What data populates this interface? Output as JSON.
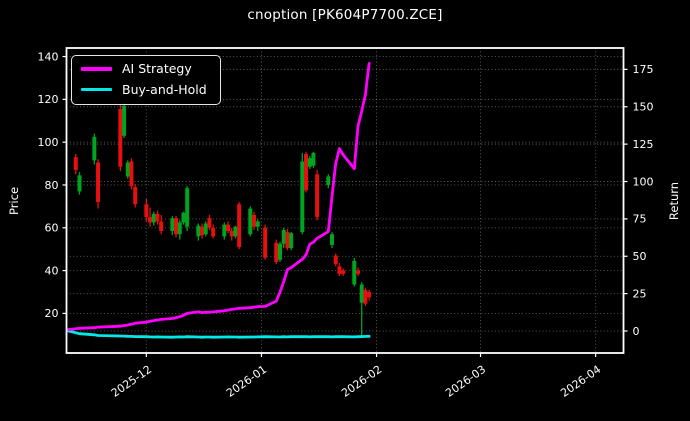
{
  "title": "cnoption [PK604P7700.ZCE]",
  "legend": {
    "items": [
      {
        "label": "AI Strategy",
        "color": "#ff00ff"
      },
      {
        "label": "Buy-and-Hold",
        "color": "#00e8e8"
      }
    ]
  },
  "axes": {
    "left_label": "Price",
    "right_label": "Return",
    "price_ticks": [
      20,
      40,
      60,
      80,
      100,
      120,
      140
    ],
    "return_ticks": [
      0,
      25,
      50,
      75,
      100,
      125,
      150,
      175
    ],
    "x_ticks": [
      {
        "date": "2025-12-01",
        "label": "2025-12"
      },
      {
        "date": "2026-01-01",
        "label": "2026-01"
      },
      {
        "date": "2026-02-01",
        "label": "2026-02"
      },
      {
        "date": "2026-03-01",
        "label": "2026-03"
      },
      {
        "date": "2026-04-01",
        "label": "2026-04"
      }
    ]
  },
  "chart_data": {
    "type": "candlestick+line",
    "title": "cnoption [PK604P7700.ZCE]",
    "xlabel": "",
    "ylabel_left": "Price",
    "ylabel_right": "Return",
    "grid": true,
    "legend_position": "upper-left",
    "background": "#000000",
    "price_axis": {
      "min": 1.5,
      "max": 144
    },
    "return_axis": {
      "min": -14.7,
      "max": 189.3
    },
    "x_range": {
      "start": "2025-11-10",
      "end": "2026-04-08"
    },
    "colors": {
      "up": "#00a41e",
      "down": "#e51010",
      "strategy": "#ff00ff",
      "buyhold": "#00e8e8",
      "grid": "rgba(255,255,255,0.38)",
      "spine": "#ffffff",
      "text": "#ffffff"
    },
    "candles": [
      {
        "d": "2025-11-12",
        "o": 93,
        "h": 94.5,
        "l": 85,
        "c": 87
      },
      {
        "d": "2025-11-13",
        "o": 77,
        "h": 86,
        "l": 75.5,
        "c": 84.5
      },
      {
        "d": "2025-11-17",
        "o": 91.5,
        "h": 104,
        "l": 89.5,
        "c": 102.5
      },
      {
        "d": "2025-11-18",
        "o": 90.5,
        "h": 92,
        "l": 69,
        "c": 72
      },
      {
        "d": "2025-11-24",
        "o": 115.5,
        "h": 117.5,
        "l": 86.5,
        "c": 88.5
      },
      {
        "d": "2025-11-25",
        "o": 103,
        "h": 118.5,
        "l": 102,
        "c": 117
      },
      {
        "d": "2025-11-26",
        "o": 84,
        "h": 91.5,
        "l": 83,
        "c": 90.5
      },
      {
        "d": "2025-11-27",
        "o": 91,
        "h": 92.5,
        "l": 78,
        "c": 79.5
      },
      {
        "d": "2025-11-28",
        "o": 79,
        "h": 80.5,
        "l": 69.5,
        "c": 71
      },
      {
        "d": "2025-12-01",
        "o": 71,
        "h": 73.5,
        "l": 63,
        "c": 65
      },
      {
        "d": "2025-12-02",
        "o": 65,
        "h": 69.5,
        "l": 60.5,
        "c": 62.5
      },
      {
        "d": "2025-12-03",
        "o": 62.5,
        "h": 67.5,
        "l": 61,
        "c": 66.5
      },
      {
        "d": "2025-12-04",
        "o": 66.5,
        "h": 68,
        "l": 61.5,
        "c": 63
      },
      {
        "d": "2025-12-05",
        "o": 63,
        "h": 66,
        "l": 57,
        "c": 58.5
      },
      {
        "d": "2025-12-08",
        "o": 58.5,
        "h": 65.5,
        "l": 56.5,
        "c": 64.5
      },
      {
        "d": "2025-12-09",
        "o": 64.5,
        "h": 65.5,
        "l": 55.5,
        "c": 57
      },
      {
        "d": "2025-12-10",
        "o": 57,
        "h": 63.5,
        "l": 54.5,
        "c": 62.5
      },
      {
        "d": "2025-12-11",
        "o": 62.5,
        "h": 67.5,
        "l": 61.5,
        "c": 67
      },
      {
        "d": "2025-12-12",
        "o": 60.5,
        "h": 79.5,
        "l": 58.5,
        "c": 78.5
      },
      {
        "d": "2025-12-15",
        "o": 56,
        "h": 62,
        "l": 54,
        "c": 61
      },
      {
        "d": "2025-12-16",
        "o": 60.5,
        "h": 62,
        "l": 55,
        "c": 56.5
      },
      {
        "d": "2025-12-17",
        "o": 57,
        "h": 63,
        "l": 56,
        "c": 62
      },
      {
        "d": "2025-12-18",
        "o": 64.5,
        "h": 66,
        "l": 59,
        "c": 60
      },
      {
        "d": "2025-12-19",
        "o": 60,
        "h": 61.5,
        "l": 55,
        "c": 56
      },
      {
        "d": "2025-12-22",
        "o": 56,
        "h": 62.5,
        "l": 54.5,
        "c": 61.5
      },
      {
        "d": "2025-12-23",
        "o": 61.5,
        "h": 63,
        "l": 57.5,
        "c": 58.5
      },
      {
        "d": "2025-12-24",
        "o": 58.5,
        "h": 60,
        "l": 54,
        "c": 56
      },
      {
        "d": "2025-12-25",
        "o": 56,
        "h": 61,
        "l": 55,
        "c": 60.5
      },
      {
        "d": "2025-12-26",
        "o": 71,
        "h": 72,
        "l": 50,
        "c": 51
      },
      {
        "d": "2025-12-29",
        "o": 57,
        "h": 70,
        "l": 56,
        "c": 69
      },
      {
        "d": "2025-12-30",
        "o": 66,
        "h": 67.5,
        "l": 59,
        "c": 60.5
      },
      {
        "d": "2025-12-31",
        "o": 60.5,
        "h": 64,
        "l": 58.5,
        "c": 63
      },
      {
        "d": "2026-01-02",
        "o": 60,
        "h": 61.5,
        "l": 45,
        "c": 46
      },
      {
        "d": "2026-01-05",
        "o": 53,
        "h": 54.5,
        "l": 43,
        "c": 44
      },
      {
        "d": "2026-01-06",
        "o": 45,
        "h": 53.5,
        "l": 44,
        "c": 52.5
      },
      {
        "d": "2026-01-07",
        "o": 52.5,
        "h": 60,
        "l": 50.5,
        "c": 59
      },
      {
        "d": "2026-01-08",
        "o": 58,
        "h": 59.5,
        "l": 49.5,
        "c": 50.5
      },
      {
        "d": "2026-01-09",
        "o": 50.5,
        "h": 58,
        "l": 49.5,
        "c": 57.5
      },
      {
        "d": "2026-01-12",
        "o": 58,
        "h": 95,
        "l": 57,
        "c": 91
      },
      {
        "d": "2026-01-13",
        "o": 94.5,
        "h": 95.5,
        "l": 76.5,
        "c": 77.5
      },
      {
        "d": "2026-01-14",
        "o": 88.5,
        "h": 93.5,
        "l": 87.5,
        "c": 92.5
      },
      {
        "d": "2026-01-15",
        "o": 89,
        "h": 95.5,
        "l": 88,
        "c": 95
      },
      {
        "d": "2026-01-16",
        "o": 85,
        "h": 87,
        "l": 63.5,
        "c": 65
      },
      {
        "d": "2026-01-19",
        "o": 80,
        "h": 85,
        "l": 78.5,
        "c": 84
      },
      {
        "d": "2026-01-20",
        "o": 52,
        "h": 58,
        "l": 50.5,
        "c": 57
      },
      {
        "d": "2026-01-21",
        "o": 47,
        "h": 48,
        "l": 42,
        "c": 43
      },
      {
        "d": "2026-01-22",
        "o": 42,
        "h": 43.5,
        "l": 37.5,
        "c": 38.5
      },
      {
        "d": "2026-01-23",
        "o": 40,
        "h": 41,
        "l": 37.5,
        "c": 38.5
      },
      {
        "d": "2026-01-26",
        "o": 33.5,
        "h": 46,
        "l": 32.5,
        "c": 44.5
      },
      {
        "d": "2026-01-27",
        "o": 40,
        "h": 41.5,
        "l": 37.5,
        "c": 38.5
      },
      {
        "d": "2026-01-28",
        "o": 25,
        "h": 34.5,
        "l": 9.5,
        "c": 33.5
      },
      {
        "d": "2026-01-29",
        "o": 31,
        "h": 32,
        "l": 23.5,
        "c": 24.5
      },
      {
        "d": "2026-01-30",
        "o": 30,
        "h": 31,
        "l": 26,
        "c": 27.5
      }
    ],
    "series": [
      {
        "name": "Buy-and-Hold",
        "axis": "return",
        "color": "#00e8e8",
        "width": 2.8,
        "points": [
          [
            "2025-11-10",
            0
          ],
          [
            "2025-11-11",
            -0.5
          ],
          [
            "2025-11-12",
            -1.2
          ],
          [
            "2025-11-13",
            -1.8
          ],
          [
            "2025-11-17",
            -2.5
          ],
          [
            "2025-11-18",
            -3.0
          ],
          [
            "2025-11-24",
            -3.3
          ],
          [
            "2025-11-25",
            -3.4
          ],
          [
            "2025-11-26",
            -3.5
          ],
          [
            "2025-11-27",
            -3.6
          ],
          [
            "2025-11-28",
            -3.7
          ],
          [
            "2025-12-01",
            -3.8
          ],
          [
            "2025-12-02",
            -3.9
          ],
          [
            "2025-12-03",
            -4.0
          ],
          [
            "2025-12-04",
            -3.9
          ],
          [
            "2025-12-05",
            -4.0
          ],
          [
            "2025-12-08",
            -4.1
          ],
          [
            "2025-12-09",
            -4.0
          ],
          [
            "2025-12-10",
            -3.9
          ],
          [
            "2025-12-11",
            -4.0
          ],
          [
            "2025-12-12",
            -3.8
          ],
          [
            "2025-12-15",
            -4.0
          ],
          [
            "2025-12-16",
            -4.1
          ],
          [
            "2025-12-17",
            -4.0
          ],
          [
            "2025-12-18",
            -4.0
          ],
          [
            "2025-12-19",
            -4.1
          ],
          [
            "2025-12-22",
            -4.0
          ],
          [
            "2025-12-23",
            -3.9
          ],
          [
            "2025-12-24",
            -4.0
          ],
          [
            "2025-12-25",
            -4.0
          ],
          [
            "2025-12-26",
            -4.1
          ],
          [
            "2025-12-29",
            -4.0
          ],
          [
            "2025-12-30",
            -4.0
          ],
          [
            "2025-12-31",
            -3.9
          ],
          [
            "2026-01-02",
            -3.8
          ],
          [
            "2026-01-05",
            -3.9
          ],
          [
            "2026-01-06",
            -4.0
          ],
          [
            "2026-01-07",
            -3.8
          ],
          [
            "2026-01-08",
            -3.9
          ],
          [
            "2026-01-09",
            -3.8
          ],
          [
            "2026-01-12",
            -3.7
          ],
          [
            "2026-01-13",
            -3.8
          ],
          [
            "2026-01-14",
            -3.9
          ],
          [
            "2026-01-15",
            -3.8
          ],
          [
            "2026-01-16",
            -3.7
          ],
          [
            "2026-01-19",
            -3.8
          ],
          [
            "2026-01-20",
            -3.9
          ],
          [
            "2026-01-21",
            -3.8
          ],
          [
            "2026-01-22",
            -3.7
          ],
          [
            "2026-01-23",
            -3.8
          ],
          [
            "2026-01-26",
            -3.9
          ],
          [
            "2026-01-27",
            -3.8
          ],
          [
            "2026-01-28",
            -3.7
          ],
          [
            "2026-01-29",
            -3.6
          ],
          [
            "2026-01-30",
            -3.5
          ]
        ]
      },
      {
        "name": "AI Strategy",
        "axis": "return",
        "color": "#ff00ff",
        "width": 2.8,
        "points": [
          [
            "2025-11-10",
            1.0
          ],
          [
            "2025-11-11",
            1.2
          ],
          [
            "2025-11-12",
            1.5
          ],
          [
            "2025-11-13",
            1.8
          ],
          [
            "2025-11-17",
            2.2
          ],
          [
            "2025-11-18",
            2.6
          ],
          [
            "2025-11-24",
            3.2
          ],
          [
            "2025-11-25",
            3.6
          ],
          [
            "2025-11-26",
            4.0
          ],
          [
            "2025-11-27",
            4.5
          ],
          [
            "2025-11-28",
            5.2
          ],
          [
            "2025-12-01",
            6.0
          ],
          [
            "2025-12-02",
            6.5
          ],
          [
            "2025-12-03",
            7.0
          ],
          [
            "2025-12-04",
            7.4
          ],
          [
            "2025-12-05",
            7.8
          ],
          [
            "2025-12-08",
            8.4
          ],
          [
            "2025-12-09",
            9.0
          ],
          [
            "2025-12-10",
            9.6
          ],
          [
            "2025-12-11",
            10.5
          ],
          [
            "2025-12-12",
            11.8
          ],
          [
            "2025-12-15",
            12.9
          ],
          [
            "2025-12-16",
            12.3
          ],
          [
            "2025-12-17",
            12.5
          ],
          [
            "2025-12-18",
            12.6
          ],
          [
            "2025-12-19",
            12.8
          ],
          [
            "2025-12-22",
            13.5
          ],
          [
            "2025-12-23",
            14.0
          ],
          [
            "2025-12-24",
            14.5
          ],
          [
            "2025-12-25",
            14.8
          ],
          [
            "2025-12-26",
            15.2
          ],
          [
            "2025-12-29",
            15.6
          ],
          [
            "2025-12-30",
            16.0
          ],
          [
            "2025-12-31",
            16.3
          ],
          [
            "2026-01-02",
            16.5
          ],
          [
            "2026-01-05",
            20
          ],
          [
            "2026-01-06",
            26
          ],
          [
            "2026-01-07",
            33
          ],
          [
            "2026-01-08",
            41
          ],
          [
            "2026-01-09",
            42.5
          ],
          [
            "2026-01-12",
            48
          ],
          [
            "2026-01-13",
            51
          ],
          [
            "2026-01-14",
            58
          ],
          [
            "2026-01-15",
            59.5
          ],
          [
            "2026-01-16",
            62
          ],
          [
            "2026-01-19",
            66.5
          ],
          [
            "2026-01-20",
            90
          ],
          [
            "2026-01-21",
            112
          ],
          [
            "2026-01-22",
            122
          ],
          [
            "2026-01-23",
            118
          ],
          [
            "2026-01-26",
            108.5
          ],
          [
            "2026-01-27",
            137
          ],
          [
            "2026-01-28",
            147
          ],
          [
            "2026-01-29",
            158
          ],
          [
            "2026-01-30",
            179
          ]
        ]
      }
    ]
  }
}
